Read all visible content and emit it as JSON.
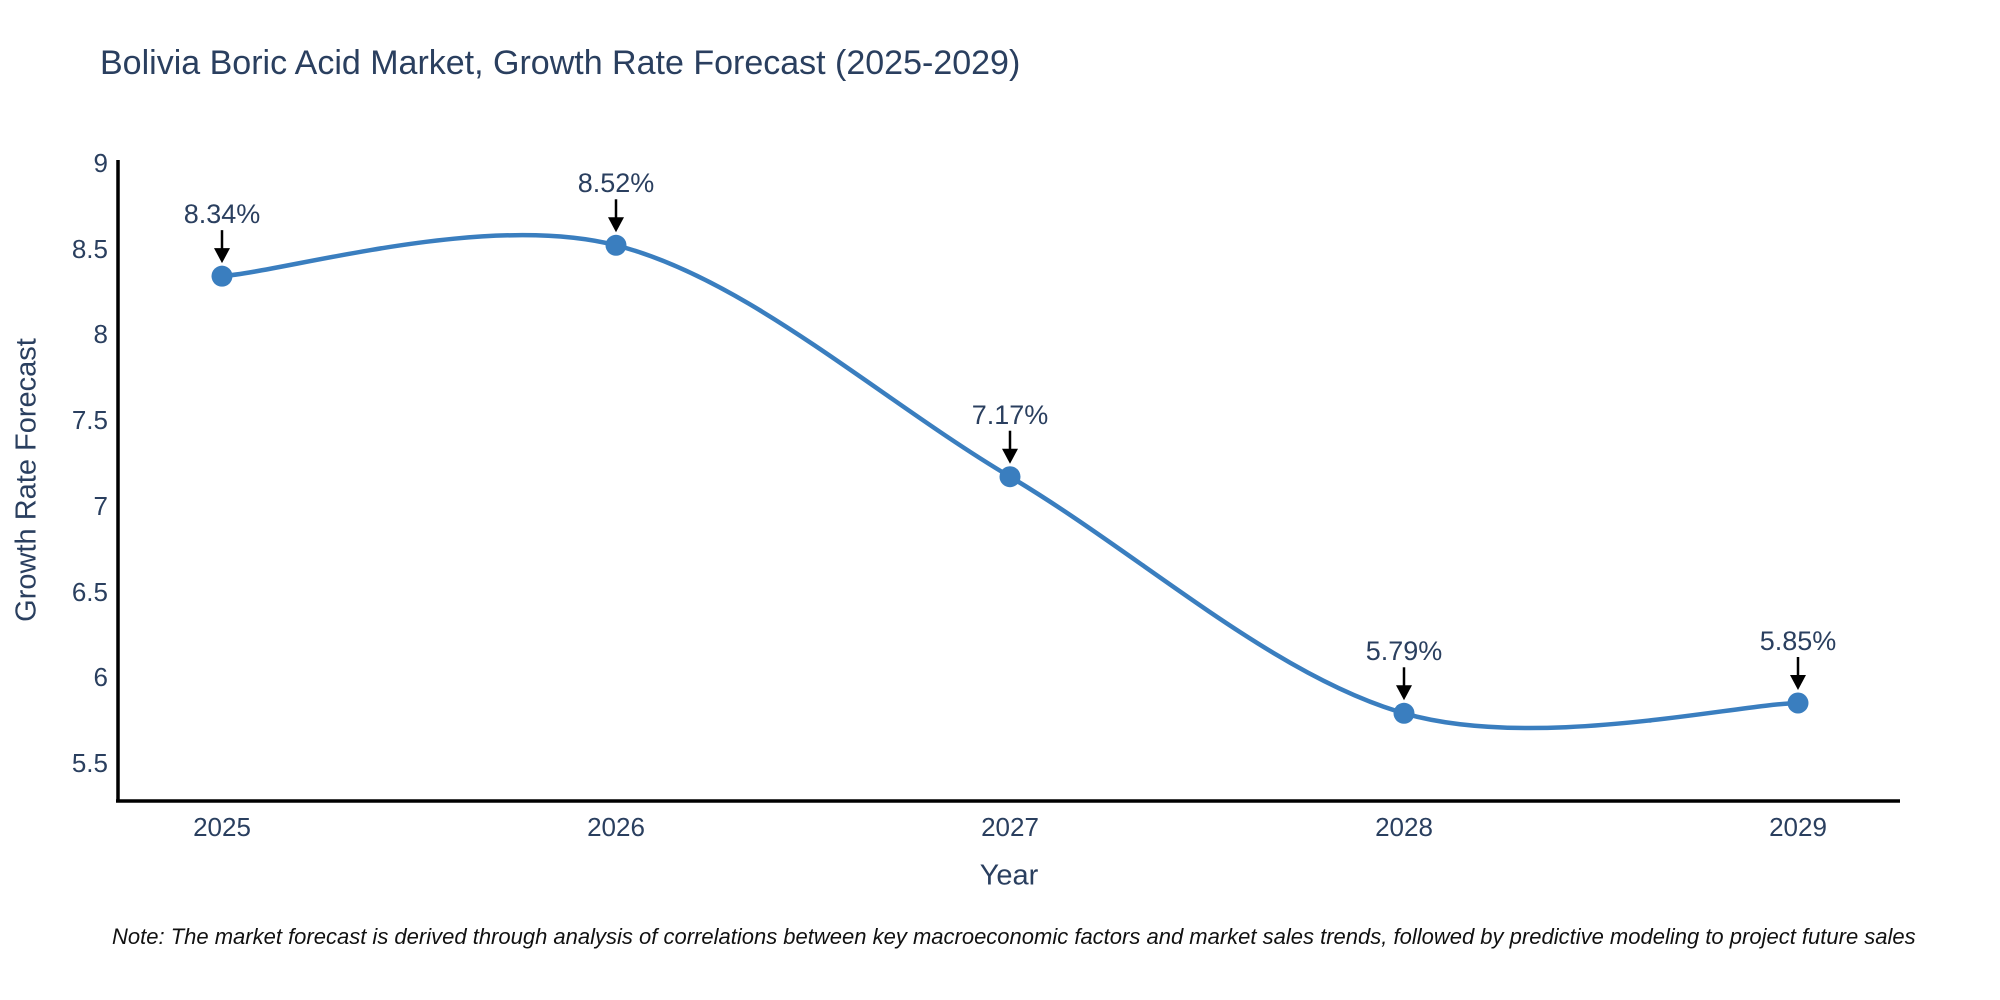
{
  "chart_data": {
    "type": "line",
    "title": "Bolivia Boric Acid Market, Growth Rate Forecast (2025-2029)",
    "xlabel": "Year",
    "ylabel": "Growth Rate Forecast",
    "x": [
      2025,
      2026,
      2027,
      2028,
      2029
    ],
    "x_tick_labels": [
      "2025",
      "2026",
      "2027",
      "2028",
      "2029"
    ],
    "series": [
      {
        "name": "Growth Rate Forecast",
        "values": [
          8.34,
          8.52,
          7.17,
          5.79,
          5.85
        ]
      }
    ],
    "point_labels": [
      "8.34%",
      "8.52%",
      "7.17%",
      "5.79%",
      "5.85%"
    ],
    "y_ticks": [
      9,
      8.5,
      8,
      7.5,
      7,
      6.5,
      6,
      5.5
    ],
    "y_tick_labels": [
      "9",
      "8.5",
      "8",
      "7.5",
      "7",
      "6.5",
      "6",
      "5.5"
    ],
    "ylim": [
      5.28,
      9.02
    ],
    "xlim": [
      2024.74,
      2029.26
    ],
    "grid": false,
    "legend": "none",
    "line_shape": "spline",
    "colors": {
      "line": "#3a7ebf",
      "marker": "#3a7ebf",
      "arrow": "#000000",
      "axis": "#000000",
      "text": "#2a3f5f",
      "note": "#111111"
    }
  },
  "footer_note": "Note: The market forecast is derived through analysis of correlations between key macroeconomic factors and market sales trends, followed by predictive modeling to project future sales"
}
